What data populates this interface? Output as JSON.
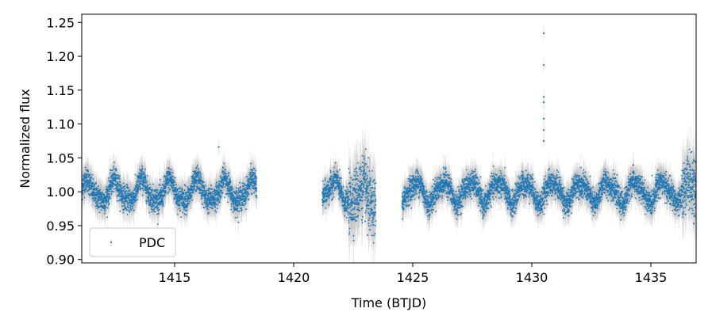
{
  "chart_data": {
    "type": "scatter",
    "title": "",
    "xlabel": "Time (BTJD)",
    "ylabel": "Normalized flux",
    "xlim": [
      1411.1,
      1436.9
    ],
    "ylim": [
      0.895,
      1.262
    ],
    "x_ticks": [
      1415,
      1420,
      1425,
      1430,
      1435
    ],
    "y_ticks": [
      0.9,
      0.95,
      1.0,
      1.05,
      1.1,
      1.15,
      1.2,
      1.25
    ],
    "x_tick_labels": [
      "1415",
      "1420",
      "1425",
      "1430",
      "1435"
    ],
    "y_tick_labels": [
      "0.90",
      "0.95",
      "1.00",
      "1.05",
      "1.10",
      "1.15",
      "1.20",
      "1.25"
    ],
    "grid": false,
    "legend_position": "lower-left",
    "series": [
      {
        "name": "PDC",
        "color": "#1f77b4",
        "marker": "dot",
        "error_bars": true,
        "baseline_flux": 1.0,
        "variability": {
          "typical_amplitude": 0.015,
          "period_days": 1.15,
          "scatter": 0.012
        },
        "segments": [
          {
            "x_start": 1411.1,
            "x_end": 1418.45
          },
          {
            "x_start": 1421.2,
            "x_end": 1423.45
          },
          {
            "x_start": 1424.55,
            "x_end": 1436.9
          }
        ],
        "gap": [
          1418.45,
          1421.2
        ],
        "notable_points": [
          {
            "x": 1416.85,
            "y": 1.066
          },
          {
            "x": 1430.5,
            "y": 1.234
          },
          {
            "x": 1430.5,
            "y": 1.187
          },
          {
            "x": 1430.5,
            "y": 1.14
          },
          {
            "x": 1430.5,
            "y": 1.132
          },
          {
            "x": 1430.5,
            "y": 1.108
          },
          {
            "x": 1430.5,
            "y": 1.091
          },
          {
            "x": 1430.5,
            "y": 1.075
          },
          {
            "x": 1423.1,
            "y": 0.936
          },
          {
            "x": 1423.2,
            "y": 0.944
          },
          {
            "x": 1436.8,
            "y": 0.953
          }
        ]
      }
    ]
  }
}
